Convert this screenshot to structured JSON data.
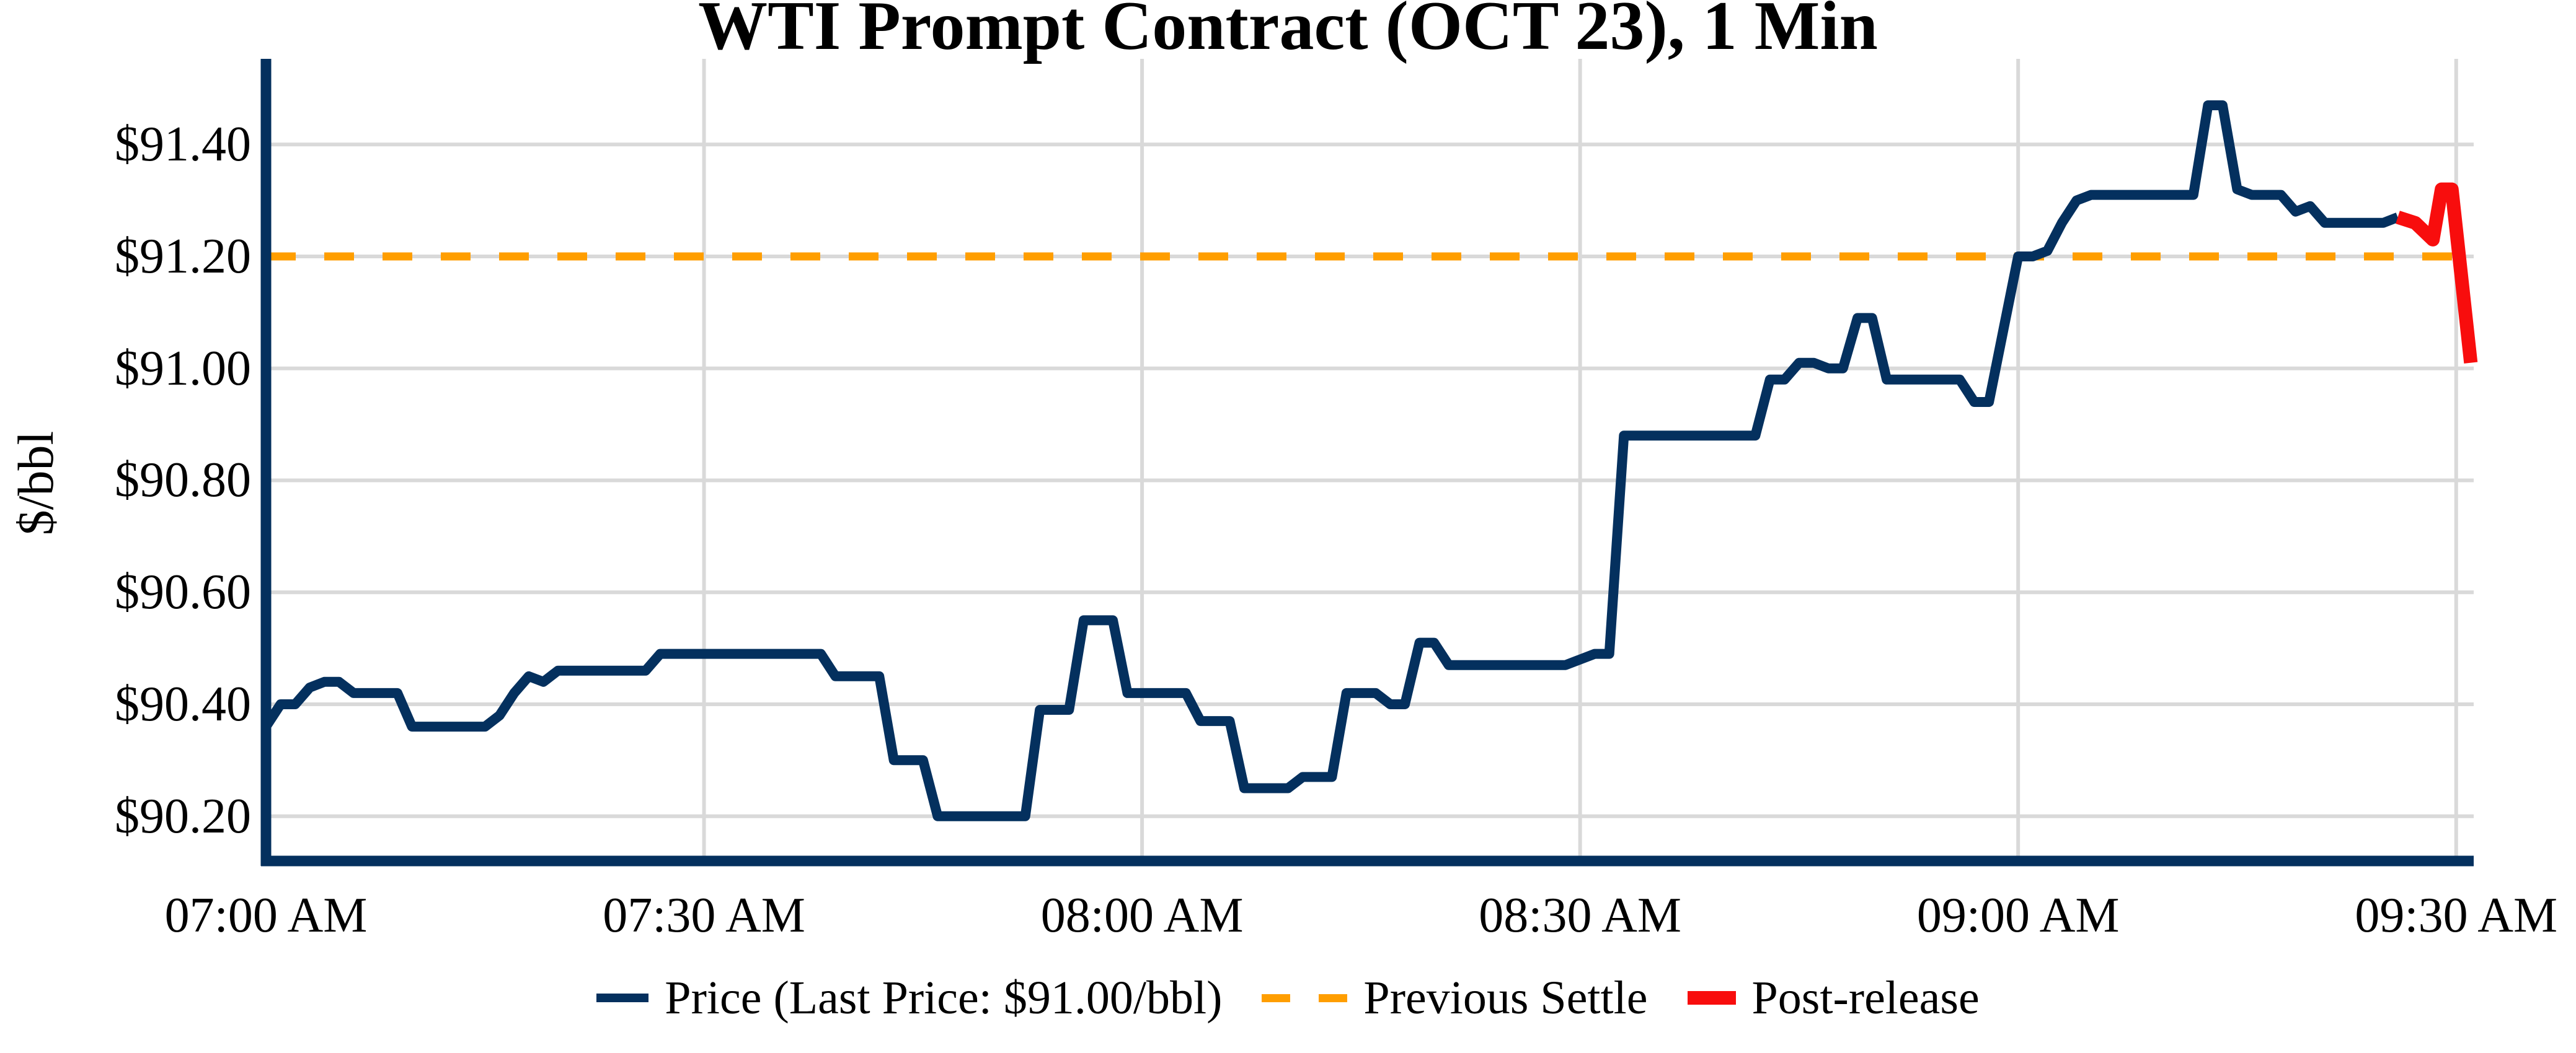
{
  "chart": {
    "title": "WTI Prompt Contract (OCT 23), 1 Min",
    "y_axis_label": "$/bbl",
    "legend": {
      "price_label": "Price (Last Price: $91.00/bbl)",
      "settle_label": "Previous Settle",
      "post_release_label": "Post-release"
    },
    "colors": {
      "price": "#04305e",
      "settle": "#ff9e00",
      "post_release": "#f80d0d",
      "grid": "#d9d9d9",
      "text": "#000000",
      "background": "#ffffff"
    }
  },
  "chart_data": {
    "type": "line",
    "title": "WTI Prompt Contract (OCT 23), 1 Min",
    "xlabel": "",
    "ylabel": "$/bbl",
    "grid": true,
    "legend_position": "bottom",
    "x_unit": "minutes after 07:00 AM, 1-minute bars",
    "xlim_minutes": [
      0,
      151.2
    ],
    "ylim": [
      90.12,
      91.553
    ],
    "x_ticks": [
      {
        "minute": 0,
        "label": "07:00 AM"
      },
      {
        "minute": 30,
        "label": "07:30 AM"
      },
      {
        "minute": 60,
        "label": "08:00 AM"
      },
      {
        "minute": 90,
        "label": "08:30 AM"
      },
      {
        "minute": 120,
        "label": "09:00 AM"
      },
      {
        "minute": 150,
        "label": "09:30 AM"
      }
    ],
    "y_ticks": [
      {
        "value": 90.2,
        "label": "$90.20"
      },
      {
        "value": 90.4,
        "label": "$90.40"
      },
      {
        "value": 90.6,
        "label": "$90.60"
      },
      {
        "value": 90.8,
        "label": "$90.80"
      },
      {
        "value": 91.0,
        "label": "$91.00"
      },
      {
        "value": 91.2,
        "label": "$91.20"
      },
      {
        "value": 91.4,
        "label": "$91.40"
      }
    ],
    "previous_settle": 91.2,
    "last_price": 91.0,
    "series": [
      {
        "name": "Price (Last Price: $91.00/bbl)",
        "color": "#04305e",
        "x_start_minute": 0,
        "minute_step": 1,
        "values": [
          90.36,
          90.4,
          90.4,
          90.43,
          90.44,
          90.44,
          90.42,
          90.42,
          90.42,
          90.42,
          90.36,
          90.36,
          90.36,
          90.36,
          90.36,
          90.36,
          90.38,
          90.42,
          90.45,
          90.44,
          90.46,
          90.46,
          90.46,
          90.46,
          90.46,
          90.46,
          90.46,
          90.49,
          90.49,
          90.49,
          90.49,
          90.49,
          90.49,
          90.49,
          90.49,
          90.49,
          90.49,
          90.49,
          90.49,
          90.45,
          90.45,
          90.45,
          90.45,
          90.3,
          90.3,
          90.3,
          90.2,
          90.2,
          90.2,
          90.2,
          90.2,
          90.2,
          90.2,
          90.39,
          90.39,
          90.39,
          90.55,
          90.55,
          90.55,
          90.42,
          90.42,
          90.42,
          90.42,
          90.42,
          90.37,
          90.37,
          90.37,
          90.25,
          90.25,
          90.25,
          90.25,
          90.27,
          90.27,
          90.27,
          90.42,
          90.42,
          90.42,
          90.4,
          90.4,
          90.51,
          90.51,
          90.47,
          90.47,
          90.47,
          90.47,
          90.47,
          90.47,
          90.47,
          90.47,
          90.47,
          90.48,
          90.49,
          90.49,
          90.88,
          90.88,
          90.88,
          90.88,
          90.88,
          90.88,
          90.88,
          90.88,
          90.88,
          90.88,
          90.98,
          90.98,
          91.01,
          91.01,
          91.0,
          91.0,
          91.09,
          91.09,
          90.98,
          90.98,
          90.98,
          90.98,
          90.98,
          90.98,
          90.94,
          90.94,
          91.07,
          91.2,
          91.2,
          91.21,
          91.26,
          91.3,
          91.31,
          91.31,
          91.31,
          91.31,
          91.31,
          91.31,
          91.31,
          91.31,
          91.47,
          91.47,
          91.32,
          91.31,
          91.31,
          91.31,
          91.28,
          91.29,
          91.26,
          91.26,
          91.26,
          91.26,
          91.26,
          91.27
        ]
      },
      {
        "name": "Post-release",
        "color": "#f80d0d",
        "x_minutes": [
          146,
          147.2,
          148.4,
          149.0,
          149.7,
          151.0
        ],
        "values": [
          91.27,
          91.26,
          91.23,
          91.32,
          91.32,
          91.01
        ]
      }
    ]
  }
}
